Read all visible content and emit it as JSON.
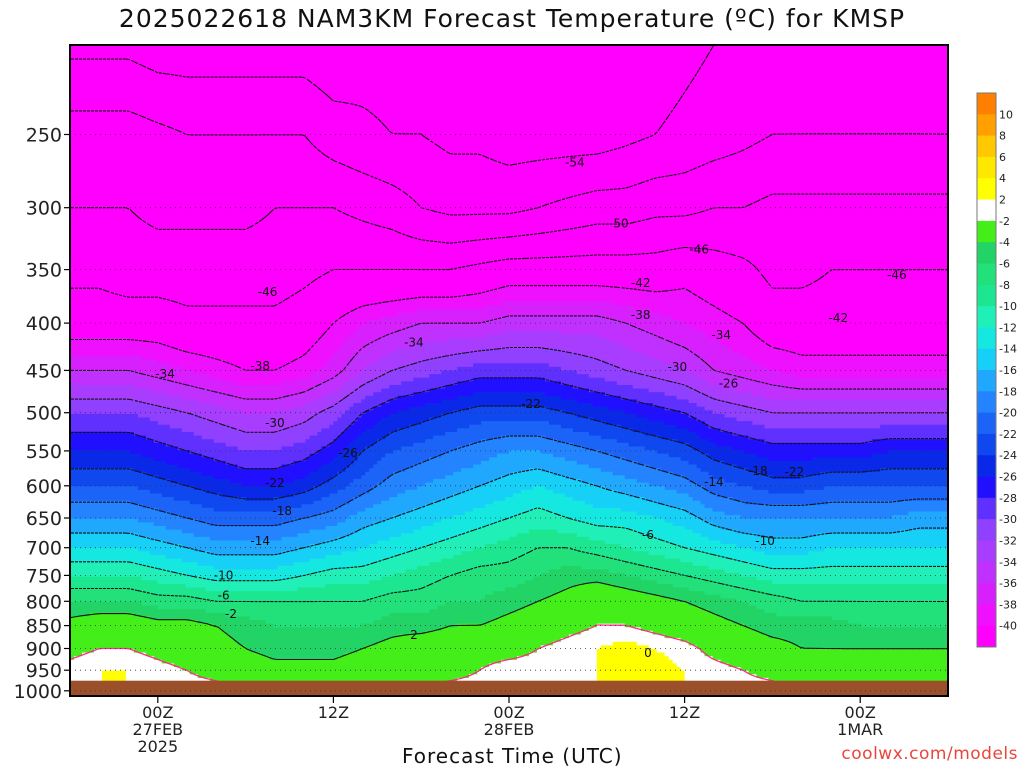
{
  "chart_data": {
    "type": "heatmap",
    "title": "2025022618 NAM3KM Forecast Temperature (ºC) for KMSP",
    "xlabel": "Forecast Time (UTC)",
    "ylabel": "",
    "x_ticks": [
      {
        "hour": 6,
        "lines": [
          "00Z",
          "27FEB",
          "2025"
        ]
      },
      {
        "hour": 18,
        "lines": [
          "12Z"
        ]
      },
      {
        "hour": 30,
        "lines": [
          "00Z",
          "28FEB"
        ]
      },
      {
        "hour": 42,
        "lines": [
          "12Z"
        ]
      },
      {
        "hour": 54,
        "lines": [
          "00Z",
          "1MAR"
        ]
      }
    ],
    "xlim": [
      0,
      60
    ],
    "y_ticks": [
      250,
      300,
      350,
      400,
      450,
      500,
      550,
      600,
      650,
      700,
      750,
      800,
      850,
      900,
      950,
      1000
    ],
    "ylim": [
      200,
      1013
    ],
    "ground_pressure": 975,
    "colorbar": {
      "levels": [
        -40,
        -38,
        -36,
        -34,
        -32,
        -30,
        -28,
        -26,
        -24,
        -22,
        -20,
        -18,
        -16,
        -14,
        -12,
        -10,
        -8,
        -6,
        -4,
        -2,
        2,
        4,
        6,
        8,
        10,
        12
      ],
      "labels": [
        "10",
        "8",
        "6",
        "4",
        "2",
        "-2",
        "-4",
        "-6",
        "-8",
        "-10",
        "-12",
        "-14",
        "-16",
        "-18",
        "-20",
        "-22",
        "-24",
        "-26",
        "-28",
        "-30",
        "-32",
        "-34",
        "-36",
        "-38",
        "-40"
      ],
      "colors": [
        "#ff00ff",
        "#ee10ff",
        "#d820ff",
        "#c030ff",
        "#a83cff",
        "#9040ff",
        "#6030ff",
        "#2010ff",
        "#0a28e8",
        "#1048f0",
        "#1c64f8",
        "#2484ff",
        "#20a8ff",
        "#16d0f8",
        "#14e8e0",
        "#20f0b8",
        "#1de690",
        "#22e07a",
        "#22d466",
        "#44ee18",
        "#ffffff",
        "#ffff00",
        "#ffe800",
        "#ffc800",
        "#ffa000",
        "#ff8000"
      ]
    },
    "hours": [
      0,
      2,
      4,
      6,
      8,
      10,
      12,
      14,
      16,
      18,
      20,
      22,
      24,
      26,
      28,
      30,
      32,
      34,
      36,
      38,
      40,
      42,
      44,
      46,
      48,
      50,
      52,
      54,
      56,
      58,
      60
    ],
    "pressure_levels": [
      200,
      250,
      300,
      350,
      400,
      450,
      500,
      550,
      600,
      650,
      700,
      750,
      800,
      850,
      900,
      950,
      1000
    ],
    "temperature_grid": [
      [
        -55,
        -55,
        -55,
        -56,
        -56,
        -56,
        -56,
        -56,
        -56,
        -57,
        -56,
        -56,
        -56,
        -57,
        -58,
        -58,
        -58,
        -58,
        -58,
        -57,
        -56,
        -55,
        -54,
        -53,
        -53,
        -52,
        -52,
        -52,
        -52,
        -52,
        -53
      ],
      [
        -48,
        -48,
        -48,
        -49,
        -50,
        -50,
        -50,
        -50,
        -50,
        -52,
        -53,
        -54,
        -54,
        -55,
        -55,
        -56,
        -56,
        -56,
        -56,
        -55,
        -54,
        -53,
        -52,
        -51,
        -50,
        -50,
        -50,
        -50,
        -50,
        -50,
        -50
      ],
      [
        -46,
        -46,
        -46,
        -47,
        -47,
        -47,
        -47,
        -46,
        -46,
        -46,
        -47,
        -48,
        -50,
        -51,
        -51,
        -51,
        -50,
        -49,
        -48,
        -48,
        -47,
        -47,
        -46,
        -46,
        -45,
        -45,
        -45,
        -45,
        -45,
        -45,
        -45
      ],
      [
        -43,
        -43,
        -44,
        -44,
        -44,
        -44,
        -44,
        -44,
        -43,
        -42,
        -42,
        -42,
        -42,
        -42,
        -41,
        -40,
        -40,
        -40,
        -40,
        -40,
        -40,
        -39,
        -40,
        -41,
        -43,
        -43,
        -42,
        -42,
        -42,
        -42,
        -42
      ],
      [
        -40,
        -40,
        -40,
        -40,
        -41,
        -41,
        -41,
        -41,
        -40,
        -38,
        -36,
        -35,
        -34,
        -34,
        -34,
        -33,
        -33,
        -33,
        -33,
        -34,
        -35,
        -36,
        -37,
        -38,
        -40,
        -40,
        -40,
        -40,
        -40,
        -40,
        -40
      ],
      [
        -34,
        -34,
        -34,
        -35,
        -36,
        -37,
        -38,
        -38,
        -37,
        -35,
        -32,
        -30,
        -29,
        -28,
        -27,
        -27,
        -27,
        -28,
        -29,
        -30,
        -31,
        -32,
        -34,
        -35,
        -36,
        -37,
        -37,
        -37,
        -37,
        -37,
        -37
      ],
      [
        -28,
        -28,
        -28,
        -29,
        -30,
        -31,
        -32,
        -32,
        -31,
        -29,
        -26,
        -24,
        -23,
        -22,
        -21,
        -21,
        -21,
        -22,
        -23,
        -24,
        -25,
        -26,
        -28,
        -29,
        -30,
        -30,
        -30,
        -30,
        -30,
        -30,
        -30
      ],
      [
        -24,
        -24,
        -24,
        -25,
        -26,
        -27,
        -28,
        -28,
        -27,
        -25,
        -22,
        -20,
        -19,
        -18,
        -17,
        -16,
        -16,
        -17,
        -18,
        -19,
        -20,
        -21,
        -23,
        -24,
        -25,
        -25,
        -25,
        -25,
        -24,
        -24,
        -24
      ],
      [
        -20,
        -20,
        -20,
        -21,
        -22,
        -23,
        -24,
        -24,
        -23,
        -21,
        -19,
        -17,
        -16,
        -15,
        -14,
        -13,
        -12,
        -13,
        -14,
        -15,
        -16,
        -17,
        -19,
        -20,
        -21,
        -21,
        -20,
        -20,
        -20,
        -20,
        -20
      ],
      [
        -16,
        -16,
        -16,
        -17,
        -18,
        -19,
        -19,
        -19,
        -18,
        -17,
        -15,
        -14,
        -13,
        -12,
        -11,
        -10,
        -9,
        -10,
        -11,
        -11,
        -12,
        -13,
        -15,
        -16,
        -16,
        -16,
        -16,
        -16,
        -16,
        -15,
        -15
      ],
      [
        -12,
        -12,
        -12,
        -13,
        -14,
        -15,
        -15,
        -15,
        -14,
        -13,
        -12,
        -11,
        -10,
        -9,
        -8,
        -7,
        -6,
        -6,
        -7,
        -8,
        -9,
        -10,
        -11,
        -12,
        -13,
        -13,
        -12,
        -12,
        -12,
        -12,
        -12
      ],
      [
        -8,
        -8,
        -8,
        -9,
        -10,
        -11,
        -11,
        -11,
        -10,
        -9,
        -9,
        -8,
        -7,
        -6,
        -5,
        -5,
        -4,
        -3,
        -3,
        -4,
        -5,
        -6,
        -7,
        -8,
        -9,
        -9,
        -9,
        -9,
        -9,
        -9,
        -9
      ],
      [
        -4,
        -4,
        -4,
        -5,
        -5,
        -6,
        -6,
        -6,
        -6,
        -6,
        -6,
        -5,
        -5,
        -4,
        -4,
        -3,
        -2,
        -1,
        1,
        0,
        -1,
        -2,
        -3,
        -4,
        -5,
        -6,
        -6,
        -6,
        -6,
        -6,
        -6
      ],
      [
        -1,
        0,
        0,
        -1,
        -1,
        -2,
        -3,
        -4,
        -4,
        -4,
        -4,
        -3,
        -3,
        -2,
        -2,
        -1,
        0,
        1,
        2,
        2,
        1,
        0,
        -1,
        -2,
        -3,
        -3,
        -3,
        -4,
        -4,
        -4,
        -4
      ],
      [
        1,
        2,
        2,
        1,
        0,
        -1,
        -2,
        -3,
        -3,
        -3,
        -2,
        -1,
        0,
        0,
        1,
        1,
        2,
        3,
        4,
        5,
        4,
        3,
        1,
        0,
        -1,
        -2,
        -2,
        -2,
        -2,
        -2,
        -2
      ],
      [
        3,
        4,
        4,
        3,
        2,
        1,
        0,
        -1,
        -1,
        -1,
        0,
        0,
        1,
        1,
        2,
        3,
        3,
        3,
        4,
        5,
        5,
        4,
        3,
        2,
        1,
        0,
        -1,
        -1,
        -1,
        -1,
        -1
      ],
      [
        4,
        4,
        4,
        4,
        3,
        3,
        2,
        2,
        2,
        2,
        2,
        2,
        2,
        3,
        3,
        3,
        3,
        4,
        4,
        4,
        4,
        4,
        3,
        3,
        3,
        2,
        1,
        1,
        1,
        1,
        1
      ]
    ],
    "contour_labels": [
      {
        "text": "-54",
        "h": 34.5,
        "p": 268
      },
      {
        "text": "-50",
        "h": 37.5,
        "p": 312
      },
      {
        "text": "-46",
        "h": 43.0,
        "p": 333
      },
      {
        "text": "-46",
        "h": 56.5,
        "p": 355
      },
      {
        "text": "-46",
        "h": 13.5,
        "p": 370
      },
      {
        "text": "-42",
        "h": 39.0,
        "p": 362
      },
      {
        "text": "-42",
        "h": 52.5,
        "p": 395
      },
      {
        "text": "-38",
        "h": 39.0,
        "p": 392
      },
      {
        "text": "-38",
        "h": 13.0,
        "p": 445
      },
      {
        "text": "-34",
        "h": 23.5,
        "p": 420
      },
      {
        "text": "-34",
        "h": 44.5,
        "p": 412
      },
      {
        "text": "-34",
        "h": 6.5,
        "p": 454
      },
      {
        "text": "-30",
        "h": 41.5,
        "p": 446
      },
      {
        "text": "-30",
        "h": 14.0,
        "p": 513
      },
      {
        "text": "-26",
        "h": 45.0,
        "p": 465
      },
      {
        "text": "-26",
        "h": 19.0,
        "p": 553
      },
      {
        "text": "-22",
        "h": 31.5,
        "p": 489
      },
      {
        "text": "-22",
        "h": 14.0,
        "p": 596
      },
      {
        "text": "-22",
        "h": 49.5,
        "p": 580
      },
      {
        "text": "-18",
        "h": 14.5,
        "p": 639
      },
      {
        "text": "-18",
        "h": 47.0,
        "p": 578
      },
      {
        "text": "-14",
        "h": 13.0,
        "p": 688
      },
      {
        "text": "-14",
        "h": 44.0,
        "p": 594
      },
      {
        "text": "-10",
        "h": 10.5,
        "p": 750
      },
      {
        "text": "-10",
        "h": 47.5,
        "p": 688
      },
      {
        "text": "-6",
        "h": 10.5,
        "p": 789
      },
      {
        "text": "-6",
        "h": 39.5,
        "p": 678
      },
      {
        "text": "-2",
        "h": 11.0,
        "p": 826
      },
      {
        "text": "2",
        "h": 23.5,
        "p": 870
      },
      {
        "text": "0",
        "h": 39.5,
        "p": 910
      }
    ],
    "credit": "coolwx.com/models"
  }
}
